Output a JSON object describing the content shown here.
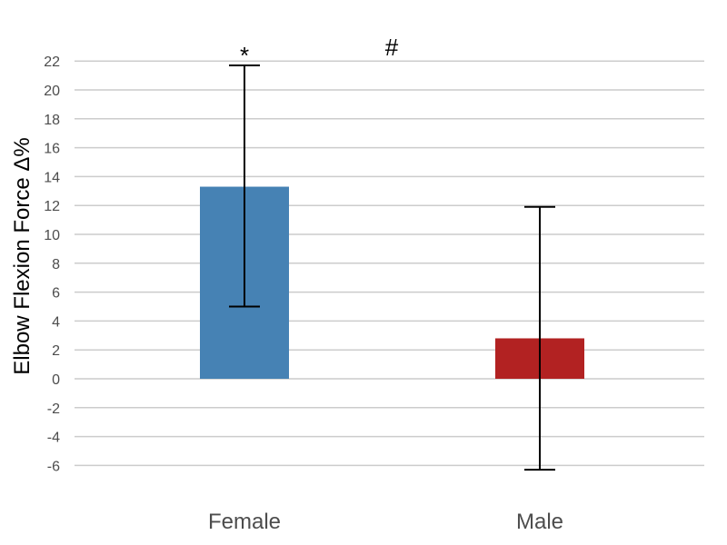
{
  "chart_data": {
    "type": "bar",
    "title": "",
    "xlabel": "",
    "ylabel": "Elbow Flexion Force Δ%",
    "categories": [
      "Female",
      "Male"
    ],
    "values": [
      13.3,
      2.8
    ],
    "error_upper": [
      21.7,
      11.9
    ],
    "error_lower": [
      5.0,
      -6.3
    ],
    "colors": [
      "#4682b4",
      "#b22222"
    ],
    "ylim": [
      -7.5,
      23
    ],
    "yticks": [
      22,
      20,
      18,
      16,
      14,
      12,
      10,
      8,
      6,
      4,
      2,
      0,
      -2,
      -4,
      -6
    ],
    "grid": true,
    "bar_annotations": [
      "*",
      ""
    ],
    "chart_annotation": "#"
  }
}
